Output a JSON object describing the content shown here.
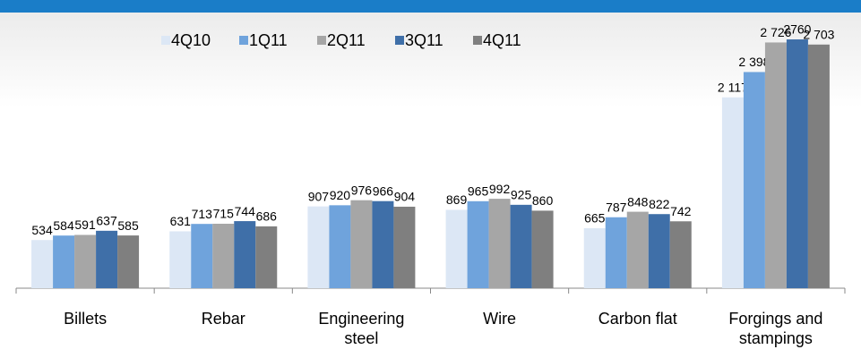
{
  "chart_data": {
    "type": "bar",
    "categories": [
      "Billets",
      "Rebar",
      "Engineering steel",
      "Wire",
      "Carbon flat",
      "Forgings and stampings"
    ],
    "series": [
      {
        "name": "4Q10",
        "color": "#dce7f5",
        "values": [
          534,
          631,
          907,
          869,
          665,
          2117
        ],
        "value_labels": [
          "534",
          "631",
          "907",
          "869",
          "665",
          "2 117"
        ]
      },
      {
        "name": "1Q11",
        "color": "#6fa3dc",
        "values": [
          584,
          713,
          920,
          965,
          787,
          2398
        ],
        "value_labels": [
          "584",
          "713",
          "920",
          "965",
          "787",
          "2 398"
        ]
      },
      {
        "name": "2Q11",
        "color": "#a6a6a6",
        "values": [
          591,
          715,
          976,
          992,
          848,
          2726
        ],
        "value_labels": [
          "591",
          "715",
          "976",
          "992",
          "848",
          "2 726"
        ]
      },
      {
        "name": "3Q11",
        "color": "#3f6fa8",
        "values": [
          637,
          744,
          966,
          925,
          822,
          2760
        ],
        "value_labels": [
          "637",
          "744",
          "966",
          "925",
          "822",
          "2760"
        ]
      },
      {
        "name": "4Q11",
        "color": "#7f7f7f",
        "values": [
          585,
          686,
          904,
          860,
          742,
          2703
        ],
        "value_labels": [
          "585",
          "686",
          "904",
          "860",
          "742",
          "2 703"
        ]
      }
    ],
    "ylim": [
      0,
      2800
    ],
    "legend": "top"
  }
}
